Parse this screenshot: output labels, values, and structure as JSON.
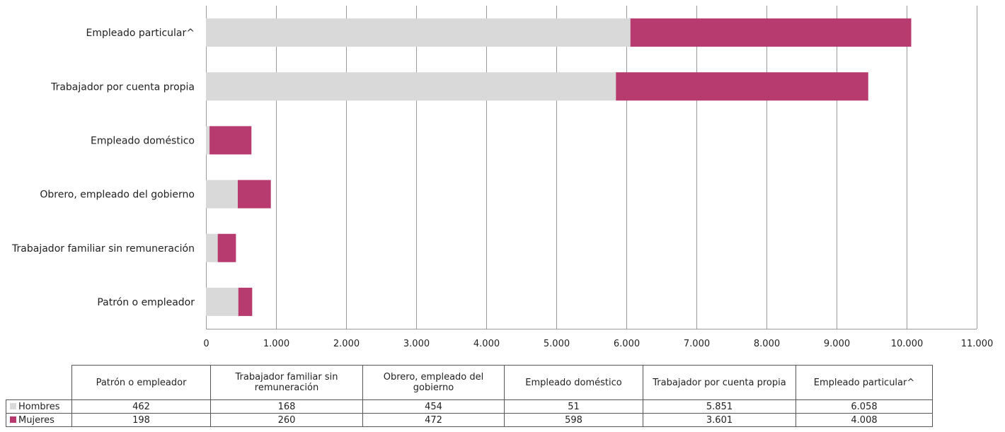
{
  "chart_data": {
    "type": "bar",
    "orientation": "horizontal",
    "stacked": true,
    "categories": [
      "Patrón o empleador",
      "Trabajador familiar sin remuneración",
      "Obrero, empleado del gobierno",
      "Empleado doméstico",
      "Trabajador por cuenta propia",
      "Empleado particular^"
    ],
    "series": [
      {
        "name": "Hombres",
        "color": "#d9d9d9",
        "values": [
          462,
          168,
          454,
          51,
          5851,
          6058
        ]
      },
      {
        "name": "Mujeres",
        "color": "#b73b6e",
        "values": [
          198,
          260,
          472,
          598,
          3601,
          4008
        ]
      }
    ],
    "xlim": [
      0,
      11000
    ],
    "xticks": [
      0,
      1000,
      2000,
      3000,
      4000,
      5000,
      6000,
      7000,
      8000,
      9000,
      10000,
      11000
    ],
    "xtick_labels": [
      "0",
      "1.000",
      "2.000",
      "3.000",
      "4.000",
      "5.000",
      "6.000",
      "7.000",
      "8.000",
      "9.000",
      "10.000",
      "11.000"
    ],
    "grid": "vertical",
    "legend": "data-table",
    "data_table": {
      "headers": [
        [
          "Patrón o empleador"
        ],
        [
          "Trabajador familiar sin",
          "remuneración"
        ],
        [
          "Obrero, empleado del",
          "gobierno"
        ],
        [
          "Empleado doméstico"
        ],
        [
          "Trabajador por cuenta propia"
        ],
        [
          "Empleado particular^"
        ]
      ],
      "rows": [
        {
          "name": "Hombres",
          "color": "#d9d9d9",
          "cells": [
            "462",
            "168",
            "454",
            "51",
            "5.851",
            "6.058"
          ]
        },
        {
          "name": "Mujeres",
          "color": "#b73b6e",
          "cells": [
            "198",
            "260",
            "472",
            "598",
            "3.601",
            "4.008"
          ]
        }
      ]
    }
  }
}
